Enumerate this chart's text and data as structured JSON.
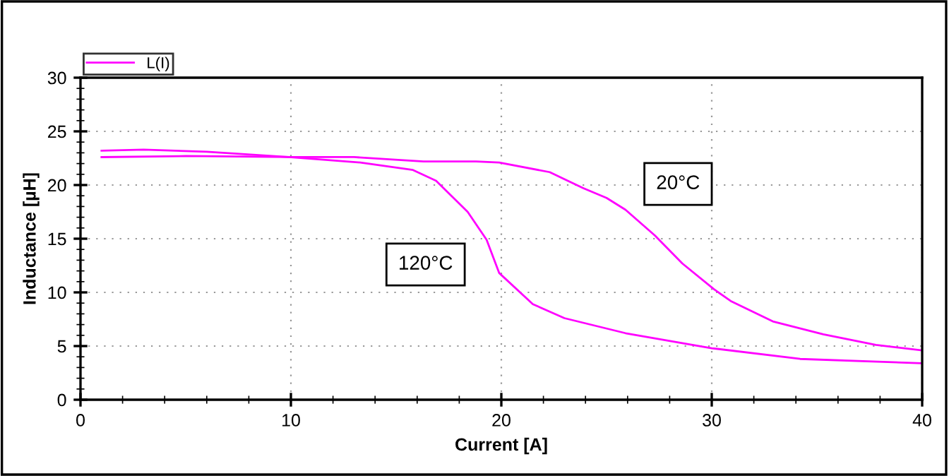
{
  "chart_data": {
    "type": "line",
    "xlabel": "Current [A]",
    "ylabel": "Inductance [µH]",
    "xlim": [
      0,
      40
    ],
    "ylim": [
      0,
      30
    ],
    "xticks": [
      0,
      10,
      20,
      30,
      40
    ],
    "yticks": [
      0,
      5,
      10,
      15,
      20,
      25,
      30
    ],
    "grid": true,
    "legend": "top left",
    "marker": "none",
    "line_style": "solid",
    "series": [
      {
        "name": "L(I)",
        "color": "#ff00ff",
        "x": [
          1,
          5,
          10,
          13,
          16.3,
          18.8,
          19.9,
          22.3,
          23.9,
          25.0,
          25.9,
          27.3,
          28.6,
          30.1,
          30.9,
          32.9,
          35.3,
          37.8,
          40
        ],
        "values": [
          22.6,
          22.7,
          22.6,
          22.6,
          22.2,
          22.2,
          22.1,
          21.2,
          19.7,
          18.8,
          17.7,
          15.3,
          12.7,
          10.3,
          9.2,
          7.3,
          6.1,
          5.1,
          4.6
        ]
      },
      {
        "color": "#ff00ff",
        "x": [
          1,
          3,
          6,
          9.9,
          13.3,
          15.8,
          16.9,
          18.4,
          19.3,
          19.9,
          21.5,
          23.0,
          25.9,
          30.0,
          34.2,
          40
        ],
        "values": [
          23.2,
          23.3,
          23.1,
          22.6,
          22.1,
          21.4,
          20.4,
          17.5,
          14.9,
          11.8,
          8.9,
          7.6,
          6.2,
          4.8,
          3.8,
          3.4
        ]
      }
    ],
    "annotations": [
      "120°C",
      "20°C"
    ]
  }
}
